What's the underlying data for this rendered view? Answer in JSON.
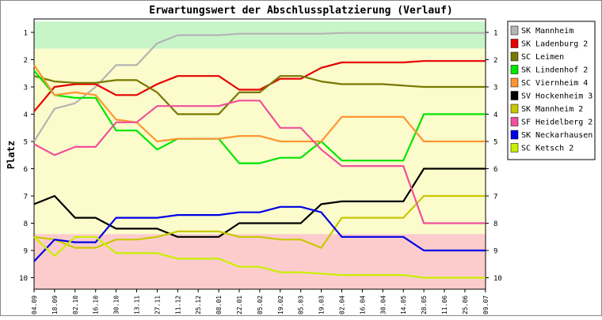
{
  "chart_data": {
    "type": "line",
    "title": "Erwartungswert der Abschlussplatzierung (Verlauf)",
    "ylabel": "Platz",
    "xlabel": "",
    "ylim": [
      1,
      10
    ],
    "y_inverted": true,
    "y_ticks": [
      1,
      2,
      3,
      4,
      5,
      6,
      7,
      8,
      9,
      10
    ],
    "grid": false,
    "legend_position": "right",
    "background_bands": [
      {
        "from": 0.6,
        "to": 1.6,
        "color": "#c8f5c8"
      },
      {
        "from": 1.6,
        "to": 8.4,
        "color": "#fbfbcc"
      },
      {
        "from": 8.4,
        "to": 10.5,
        "color": "#fccccc"
      }
    ],
    "categories": [
      "04.09",
      "18.09",
      "02.10",
      "16.10",
      "30.10",
      "13.11",
      "27.11",
      "11.12",
      "25.12",
      "08.01",
      "22.01",
      "05.02",
      "19.02",
      "05.03",
      "19.03",
      "02.04",
      "16.04",
      "30.04",
      "14.05",
      "28.05",
      "11.06",
      "25.06",
      "09.07"
    ],
    "series": [
      {
        "name": "SK Mannheim",
        "color": "#b4b4b4",
        "values": [
          5.0,
          3.8,
          3.6,
          3.0,
          2.2,
          2.2,
          1.4,
          1.1,
          1.1,
          1.1,
          1.05,
          1.05,
          1.05,
          1.05,
          1.05,
          1.02,
          1.02,
          1.02,
          1.02,
          1.02,
          1.02,
          1.02,
          1.02
        ]
      },
      {
        "name": "SK Ladenburg 2",
        "color": "#e60000",
        "values": [
          3.9,
          3.0,
          2.9,
          2.9,
          3.3,
          3.3,
          2.9,
          2.6,
          2.6,
          2.6,
          3.1,
          3.1,
          2.7,
          2.7,
          2.3,
          2.1,
          2.1,
          2.1,
          2.1,
          2.05,
          2.05,
          2.05,
          2.05
        ]
      },
      {
        "name": "SC Leimen",
        "color": "#787800",
        "values": [
          2.6,
          2.8,
          2.85,
          2.85,
          2.75,
          2.75,
          3.2,
          4.0,
          4.0,
          4.0,
          3.2,
          3.2,
          2.6,
          2.6,
          2.8,
          2.9,
          2.9,
          2.9,
          2.95,
          3.0,
          3.0,
          3.0,
          3.0
        ]
      },
      {
        "name": "SK Lindenhof 2",
        "color": "#00e600",
        "values": [
          2.4,
          3.3,
          3.4,
          3.4,
          4.6,
          4.6,
          5.3,
          4.9,
          4.9,
          4.9,
          5.8,
          5.8,
          5.6,
          5.6,
          5.0,
          5.7,
          5.7,
          5.7,
          5.7,
          4.0,
          4.0,
          4.0,
          4.0
        ]
      },
      {
        "name": "SC Viernheim 4",
        "color": "#ff9632",
        "values": [
          2.2,
          3.3,
          3.2,
          3.3,
          4.2,
          4.3,
          5.0,
          4.9,
          4.9,
          4.9,
          4.8,
          4.8,
          5.0,
          5.0,
          5.0,
          4.1,
          4.1,
          4.1,
          4.1,
          5.0,
          5.0,
          5.0,
          5.0
        ]
      },
      {
        "name": "SV Hockenheim 3",
        "color": "#000000",
        "values": [
          7.3,
          7.0,
          7.8,
          7.8,
          8.2,
          8.2,
          8.2,
          8.5,
          8.5,
          8.5,
          8.0,
          8.0,
          8.0,
          8.0,
          7.3,
          7.2,
          7.2,
          7.2,
          7.2,
          6.0,
          6.0,
          6.0,
          6.0
        ]
      },
      {
        "name": "SK Mannheim 2",
        "color": "#c8c800",
        "values": [
          8.5,
          8.6,
          8.9,
          8.9,
          8.6,
          8.6,
          8.5,
          8.3,
          8.3,
          8.3,
          8.5,
          8.5,
          8.6,
          8.6,
          8.9,
          7.8,
          7.8,
          7.8,
          7.8,
          7.0,
          7.0,
          7.0,
          7.0
        ]
      },
      {
        "name": "SF Heidelberg 2",
        "color": "#f0509b",
        "values": [
          5.1,
          5.5,
          5.2,
          5.2,
          4.3,
          4.3,
          3.7,
          3.7,
          3.7,
          3.7,
          3.5,
          3.5,
          4.5,
          4.5,
          5.3,
          5.9,
          5.9,
          5.9,
          5.9,
          8.0,
          8.0,
          8.0,
          8.0
        ]
      },
      {
        "name": "SK Neckarhausen",
        "color": "#0000e6",
        "values": [
          9.4,
          8.6,
          8.7,
          8.7,
          7.8,
          7.8,
          7.8,
          7.7,
          7.7,
          7.7,
          7.6,
          7.6,
          7.4,
          7.4,
          7.6,
          8.5,
          8.5,
          8.5,
          8.5,
          9.0,
          9.0,
          9.0,
          9.0
        ]
      },
      {
        "name": "SC Ketsch 2",
        "color": "#c8f000",
        "values": [
          8.5,
          9.2,
          8.5,
          8.5,
          9.1,
          9.1,
          9.1,
          9.3,
          9.3,
          9.3,
          9.6,
          9.6,
          9.8,
          9.8,
          9.85,
          9.9,
          9.9,
          9.9,
          9.9,
          10.0,
          10.0,
          10.0,
          10.0
        ]
      }
    ]
  }
}
